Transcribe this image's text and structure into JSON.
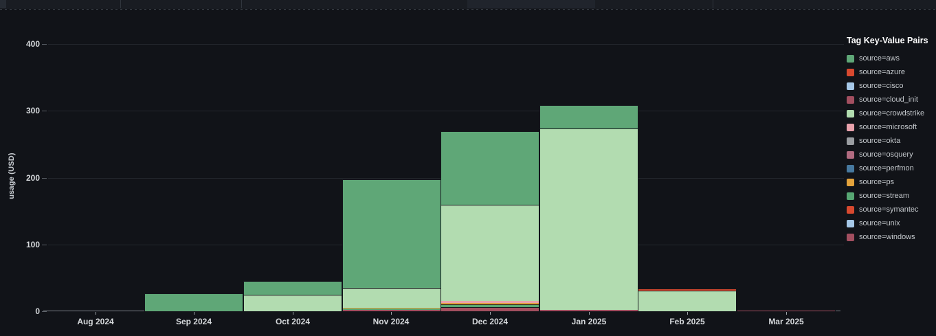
{
  "panel": {
    "background": "#111318",
    "accent_grid": "#24272d",
    "axis_line": "#7d8288",
    "text_color": "#d6d9dc"
  },
  "legend": {
    "title": "Tag Key-Value Pairs",
    "items": [
      {
        "label": "source=aws",
        "key": "aws"
      },
      {
        "label": "source=azure",
        "key": "azure"
      },
      {
        "label": "source=cisco",
        "key": "cisco"
      },
      {
        "label": "source=cloud_init",
        "key": "cloud_init"
      },
      {
        "label": "source=crowdstrike",
        "key": "crowdstrike"
      },
      {
        "label": "source=microsoft",
        "key": "microsoft"
      },
      {
        "label": "source=okta",
        "key": "okta"
      },
      {
        "label": "source=osquery",
        "key": "osquery"
      },
      {
        "label": "source=perfmon",
        "key": "perfmon"
      },
      {
        "label": "source=ps",
        "key": "ps"
      },
      {
        "label": "source=stream",
        "key": "stream"
      },
      {
        "label": "source=symantec",
        "key": "symantec"
      },
      {
        "label": "source=unix",
        "key": "unix"
      },
      {
        "label": "source=windows",
        "key": "windows"
      }
    ]
  },
  "palette": {
    "aws": "#5fa777",
    "azure": "#d8492f",
    "cisco": "#a6c8e8",
    "cloud_init": "#a34f60",
    "crowdstrike": "#b2dcb0",
    "microsoft": "#e9a2ac",
    "okta": "#9a9da1",
    "osquery": "#b16b80",
    "perfmon": "#47799f",
    "ps": "#e4a33c",
    "stream": "#57a773",
    "symantec": "#d8492f",
    "unix": "#a6c8e8",
    "windows": "#a34f60"
  },
  "chart_data": {
    "type": "bar",
    "stacked": true,
    "title": "",
    "xlabel": "",
    "ylabel": "usage (USD)",
    "ylim": [
      0,
      400
    ],
    "yticks": [
      0,
      100,
      200,
      300,
      400
    ],
    "grid": true,
    "legend_position": "right",
    "categories": [
      "Aug 2024",
      "Sep 2024",
      "Oct 2024",
      "Nov 2024",
      "Dec 2024",
      "Jan 2025",
      "Feb 2025",
      "Mar 2025"
    ],
    "series": [
      {
        "name": "source=aws",
        "key": "aws",
        "values": [
          0,
          27,
          20,
          162,
          110,
          35.5,
          0,
          0
        ]
      },
      {
        "name": "source=azure",
        "key": "azure",
        "values": [
          0,
          0,
          0,
          0,
          0,
          0,
          1.5,
          0
        ]
      },
      {
        "name": "source=cisco",
        "key": "cisco",
        "values": [
          0,
          0,
          0,
          0,
          0,
          0,
          0,
          0
        ]
      },
      {
        "name": "source=cloud_init",
        "key": "cloud_init",
        "values": [
          0,
          0,
          0,
          0,
          0,
          0,
          0,
          0
        ]
      },
      {
        "name": "source=crowdstrike",
        "key": "crowdstrike",
        "values": [
          0,
          0,
          25,
          30,
          144,
          271,
          31,
          0
        ]
      },
      {
        "name": "source=microsoft",
        "key": "microsoft",
        "values": [
          0,
          0,
          0,
          0,
          2.6,
          0,
          0,
          0
        ]
      },
      {
        "name": "source=okta",
        "key": "okta",
        "values": [
          0,
          0,
          0,
          0,
          0.6,
          0,
          0,
          0
        ]
      },
      {
        "name": "source=osquery",
        "key": "osquery",
        "values": [
          0,
          0,
          0,
          0,
          0,
          0,
          0,
          0
        ]
      },
      {
        "name": "source=perfmon",
        "key": "perfmon",
        "values": [
          0,
          0,
          0,
          0,
          0,
          0,
          0,
          0
        ]
      },
      {
        "name": "source=ps",
        "key": "ps",
        "values": [
          0,
          0,
          0,
          1.6,
          1.7,
          0,
          0,
          0
        ]
      },
      {
        "name": "source=stream",
        "key": "stream",
        "values": [
          0,
          0,
          0,
          1.6,
          4.2,
          0,
          0,
          0
        ]
      },
      {
        "name": "source=symantec",
        "key": "symantec",
        "values": [
          0,
          0,
          0,
          0,
          0,
          0,
          0,
          0
        ]
      },
      {
        "name": "source=unix",
        "key": "unix",
        "values": [
          0,
          0,
          0,
          0,
          0,
          0,
          0,
          0
        ]
      },
      {
        "name": "source=windows",
        "key": "windows",
        "values": [
          0,
          0,
          0,
          2.2,
          6.2,
          2.4,
          0,
          1.2
        ]
      }
    ],
    "stack_order_bottom_to_top": [
      "windows",
      "unix",
      "symantec",
      "stream",
      "ps",
      "perfmon",
      "osquery",
      "okta",
      "microsoft",
      "crowdstrike",
      "cloud_init",
      "cisco",
      "azure",
      "aws"
    ],
    "totals_by_month": [
      0,
      27,
      45,
      197.4,
      269.3,
      308.9,
      32.5,
      1.2
    ]
  }
}
